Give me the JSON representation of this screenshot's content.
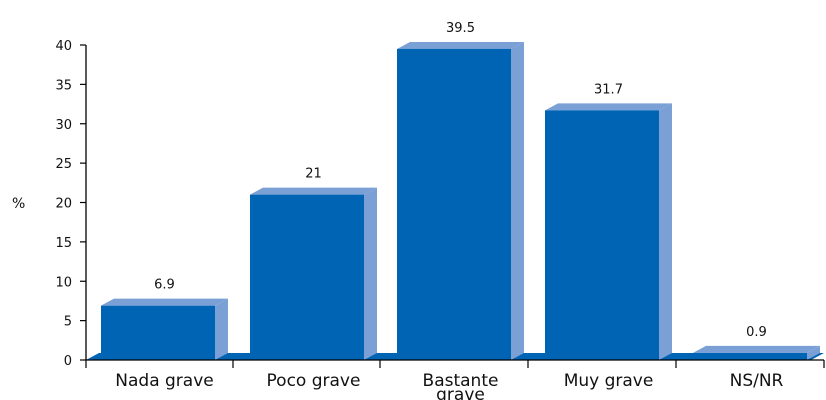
{
  "chart_data": {
    "type": "bar",
    "title": "",
    "xlabel": "",
    "ylabel": "%",
    "ylim": [
      0,
      40
    ],
    "yticks": [
      0,
      5,
      10,
      15,
      20,
      25,
      30,
      35,
      40
    ],
    "categories": [
      [
        "Nada grave"
      ],
      [
        "Poco grave"
      ],
      [
        "Bastante",
        "grave"
      ],
      [
        "Muy grave"
      ],
      [
        "NS/NR"
      ]
    ],
    "values": [
      6.9,
      21,
      39.5,
      31.7,
      0.9
    ],
    "value_labels": [
      "6.9",
      "21",
      "39.5",
      "31.7",
      "0.9"
    ],
    "grid": false,
    "colors": {
      "bar_front": "#0064B4",
      "bar_side": "#7BA0D6",
      "bar_top": "#7BA0D6",
      "floor": "#0064B4",
      "axis": "#000000"
    }
  }
}
